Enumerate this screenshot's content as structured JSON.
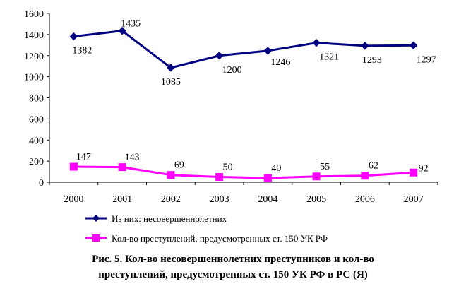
{
  "chart_data": {
    "type": "line",
    "categories": [
      "2000",
      "2001",
      "2002",
      "2003",
      "2004",
      "2005",
      "2006",
      "2007"
    ],
    "ylim": [
      0,
      1600
    ],
    "y_ticks": [
      "0",
      "200",
      "400",
      "600",
      "800",
      "1000",
      "1200",
      "1400",
      "1600"
    ],
    "grid": false,
    "legend_position": "bottom",
    "series": [
      {
        "name": "Из них: несовершеннолетних",
        "values": [
          1382,
          1435,
          1085,
          1200,
          1246,
          1321,
          1293,
          1297
        ],
        "labels": [
          "1382",
          "1435",
          "1085",
          "1200",
          "1246",
          "1321",
          "1293",
          "1297"
        ],
        "color": "#000080",
        "marker": "diamond"
      },
      {
        "name": "Кол-во преступлений, предусмотренных ст. 150 УК РФ",
        "values": [
          147,
          143,
          69,
          50,
          40,
          55,
          62,
          92
        ],
        "labels": [
          "147",
          "143",
          "69",
          "50",
          "40",
          "55",
          "62",
          "92"
        ],
        "color": "#FF00FF",
        "marker": "square"
      }
    ]
  },
  "caption": {
    "line1": "Рис. 5. Кол-во несовершеннолетних преступников и кол-во",
    "line2": "преступлений, предусмотренных ст. 150 УК РФ в РС (Я)"
  }
}
